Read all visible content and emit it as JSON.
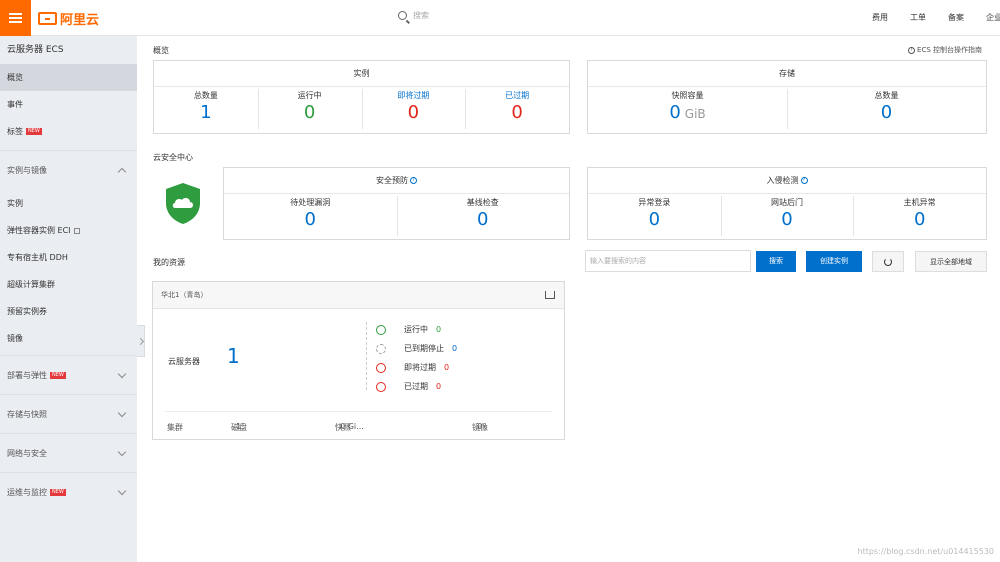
{
  "header": {
    "brand": "阿里云",
    "search_placeholder": "搜索",
    "links": [
      "费用",
      "工单",
      "备案",
      "企业"
    ]
  },
  "sidebar": {
    "title": "云服务器 ECS",
    "items": [
      {
        "label": "概览",
        "active": true
      },
      {
        "label": "事件"
      },
      {
        "label": "标签",
        "badge": "NEW"
      }
    ],
    "group_open": "实例与镜像",
    "sub_items": [
      "实例",
      "弹性容器实例 ECI",
      "专有宿主机 DDH",
      "超级计算集群",
      "预留实例券",
      "镜像"
    ],
    "groups": [
      {
        "label": "部署与弹性",
        "badge": "NEW"
      },
      {
        "label": "存储与快照"
      },
      {
        "label": "网络与安全"
      },
      {
        "label": "运维与监控",
        "badge": "NEW"
      }
    ]
  },
  "overview": {
    "title": "概览",
    "help": "ECS 控制台操作指南",
    "instances": {
      "header": "实例",
      "stats": [
        {
          "label": "总数量",
          "value": "1"
        },
        {
          "label": "运行中",
          "value": "0"
        },
        {
          "label": "即将过期",
          "value": "0"
        },
        {
          "label": "已过期",
          "value": "0"
        }
      ]
    },
    "storage": {
      "header": "存储",
      "stats": [
        {
          "label": "快照容量",
          "value": "0",
          "unit": "GiB"
        },
        {
          "label": "总数量",
          "value": "0"
        }
      ]
    }
  },
  "security": {
    "title": "云安全中心",
    "vulns": {
      "header": "安全预防",
      "stats": [
        {
          "label": "待处理漏洞",
          "value": "0"
        },
        {
          "label": "基线检查",
          "value": "0"
        }
      ]
    },
    "intrusion": {
      "header": "入侵检测",
      "stats": [
        {
          "label": "异常登录",
          "value": "0"
        },
        {
          "label": "网站后门",
          "value": "0"
        },
        {
          "label": "主机异常",
          "value": "0"
        }
      ]
    }
  },
  "resources": {
    "title": "我的资源",
    "search_placeholder": "输入要搜索的内容",
    "search_btn": "搜索",
    "create_btn": "创建实例",
    "show_all_btn": "显示全部地域",
    "region": {
      "name": "华北1（青岛）",
      "server_label": "云服务器",
      "server_count": "1",
      "statuses": [
        {
          "label": "运行中",
          "value": "0"
        },
        {
          "label": "已到期停止",
          "value": "0"
        },
        {
          "label": "即将过期",
          "value": "0"
        },
        {
          "label": "已过期",
          "value": "0"
        }
      ],
      "bottom": [
        {
          "label": "集群",
          "value": ""
        },
        {
          "label": "磁盘",
          "value": "1"
        },
        {
          "label": "快照",
          "value": "0 Gi..."
        },
        {
          "label": "镜像",
          "value": "0"
        }
      ]
    }
  },
  "watermark": "https://blog.csdn.net/u014415530"
}
